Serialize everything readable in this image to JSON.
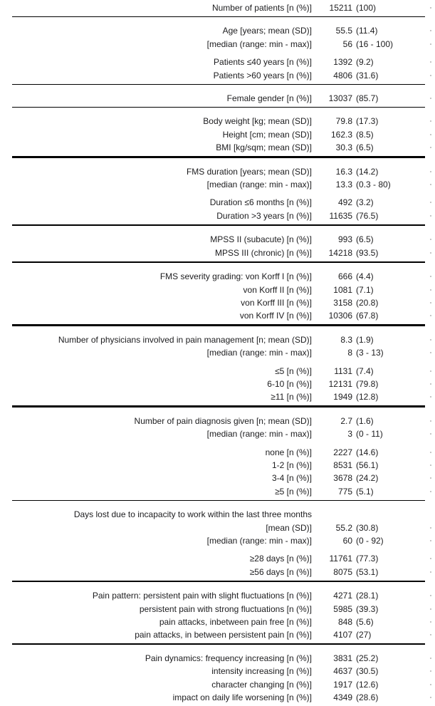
{
  "table": {
    "description": "Patient characteristics table",
    "value_column_format": "n (%)",
    "text_color": "#1c1c1e",
    "rule_color": "#000000",
    "sections": [
      {
        "divider_after": "thin",
        "groups": [
          {
            "rows": [
              {
                "label": "Number of patients [n (%)]",
                "num": "15211",
                "paren": "(100)"
              }
            ]
          }
        ]
      },
      {
        "divider_after": "thin",
        "groups": [
          {
            "rows": [
              {
                "label": "Age [years; mean (SD)]",
                "num": "55.5",
                "paren": "(11.4)"
              },
              {
                "label": "[median (range: min - max)]",
                "num": "56",
                "paren": "(16 - 100)"
              }
            ]
          },
          {
            "rows": [
              {
                "label": "Patients ≤40 years [n (%)]",
                "num": "1392",
                "paren": "(9.2)"
              },
              {
                "label": "Patients >60 years [n (%)]",
                "num": "4806",
                "paren": "(31.6)"
              }
            ]
          }
        ]
      },
      {
        "divider_after": "thin",
        "groups": [
          {
            "rows": [
              {
                "label": "Female gender [n (%)]",
                "num": "13037",
                "paren": "(85.7)"
              }
            ]
          }
        ]
      },
      {
        "divider_after": "thick",
        "groups": [
          {
            "rows": [
              {
                "label": "Body weight [kg; mean (SD)]",
                "num": "79.8",
                "paren": "(17.3)"
              },
              {
                "label": "Height [cm; mean (SD)]",
                "num": "162.3",
                "paren": "(8.5)"
              },
              {
                "label": "BMI [kg/sqm; mean (SD)]",
                "num": "30.3",
                "paren": "(6.5)"
              }
            ]
          }
        ]
      },
      {
        "divider_after": "thick",
        "groups": [
          {
            "rows": [
              {
                "label": "FMS duration [years; mean (SD)]",
                "num": "16.3",
                "paren": "(14.2)"
              },
              {
                "label": "[median (range: min - max)]",
                "num": "13.3",
                "paren": "(0.3 - 80)"
              }
            ]
          },
          {
            "rows": [
              {
                "label": "Duration ≤6 months [n (%)]",
                "num": "492",
                "paren": "(3.2)"
              },
              {
                "label": "Duration >3 years [n (%)]",
                "num": "11635",
                "paren": "(76.5)"
              }
            ]
          }
        ]
      },
      {
        "divider_after": "thick",
        "groups": [
          {
            "rows": [
              {
                "label": "MPSS II (subacute) [n (%)]",
                "num": "993",
                "paren": "(6.5)"
              },
              {
                "label": "MPSS III (chronic) [n (%)]",
                "num": "14218",
                "paren": "(93.5)"
              }
            ]
          }
        ]
      },
      {
        "divider_after": "thick",
        "groups": [
          {
            "rows": [
              {
                "label": "FMS severity grading: von Korff I [n (%)]",
                "num": "666",
                "paren": "(4.4)"
              },
              {
                "label": "von Korff II [n (%)]",
                "num": "1081",
                "paren": "(7.1)"
              },
              {
                "label": "von Korff III [n (%)]",
                "num": "3158",
                "paren": "(20.8)"
              },
              {
                "label": "von Korff IV [n (%)]",
                "num": "10306",
                "paren": "(67.8)"
              }
            ]
          }
        ]
      },
      {
        "divider_after": "thick",
        "groups": [
          {
            "rows": [
              {
                "label": "Number of physicians involved in pain management [n; mean (SD)]",
                "num": "8.3",
                "paren": "(1.9)"
              },
              {
                "label": "[median (range: min - max)]",
                "num": "8",
                "paren": "(3 - 13)"
              }
            ]
          },
          {
            "rows": [
              {
                "label": "≤5 [n (%)]",
                "num": "1131",
                "paren": "(7.4)"
              },
              {
                "label": "6-10 [n (%)]",
                "num": "12131",
                "paren": "(79.8)"
              },
              {
                "label": "≥11 [n (%)]",
                "num": "1949",
                "paren": "(12.8)"
              }
            ]
          }
        ]
      },
      {
        "divider_after": "thin",
        "groups": [
          {
            "rows": [
              {
                "label": "Number of pain diagnosis given [n; mean (SD)]",
                "num": "2.7",
                "paren": "(1.6)"
              },
              {
                "label": "[median (range: min - max)]",
                "num": "3",
                "paren": "(0 - 11)"
              }
            ]
          },
          {
            "rows": [
              {
                "label": "none [n (%)]",
                "num": "2227",
                "paren": "(14.6)"
              },
              {
                "label": "1-2 [n (%)]",
                "num": "8531",
                "paren": "(56.1)"
              },
              {
                "label": "3-4 [n (%)]",
                "num": "3678",
                "paren": "(24.2)"
              },
              {
                "label": "≥5 [n (%)]",
                "num": "775",
                "paren": "(5.1)"
              }
            ]
          }
        ]
      },
      {
        "divider_after": "thick",
        "groups": [
          {
            "rows": [
              {
                "label": "Days lost due to incapacity to work within the last three months",
                "num": "",
                "paren": ""
              },
              {
                "label": "[mean (SD)]",
                "num": "55.2",
                "paren": "(30.8)"
              },
              {
                "label": "[median (range: min - max)]",
                "num": "60",
                "paren": "(0 - 92)"
              }
            ]
          },
          {
            "rows": [
              {
                "label": "≥28 days [n (%)]",
                "num": "11761",
                "paren": "(77.3)"
              },
              {
                "label": "≥56 days [n (%)]",
                "num": "8075",
                "paren": "(53.1)"
              }
            ]
          }
        ]
      },
      {
        "divider_after": "thin",
        "groups": [
          {
            "rows": [
              {
                "label": "Pain pattern: persistent pain with slight fluctuations [n (%)]",
                "num": "4271",
                "paren": "(28.1)"
              },
              {
                "label": "persistent pain with strong fluctuations [n (%)]",
                "num": "5985",
                "paren": "(39.3)"
              },
              {
                "label": "pain attacks, inbetween pain free [n (%)]",
                "num": "848",
                "paren": "(5.6)"
              },
              {
                "label": "pain attacks, in between persistent pain [n (%)]",
                "num": "4107",
                "paren": "(27)"
              }
            ]
          }
        ]
      },
      {
        "divider_after": "none",
        "groups": [
          {
            "rows": [
              {
                "label": "Pain dynamics: frequency increasing [n (%)]",
                "num": "3831",
                "paren": "(25.2)"
              },
              {
                "label": "intensity increasing [n (%)]",
                "num": "4637",
                "paren": "(30.5)"
              },
              {
                "label": "character changing [n (%)]",
                "num": "1917",
                "paren": "(12.6)"
              },
              {
                "label": "impact on daily life worsening [n (%)]",
                "num": "4349",
                "paren": "(28.6)"
              }
            ]
          }
        ]
      }
    ]
  }
}
